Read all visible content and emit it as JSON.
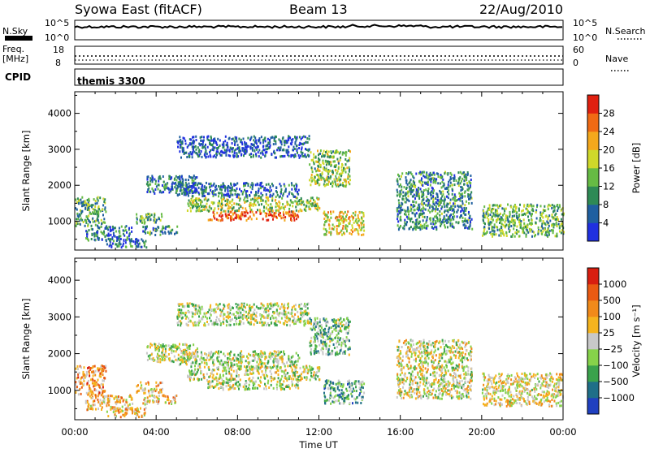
{
  "header": {
    "station": "Syowa East (fitACF)",
    "beam": "Beam 13",
    "date": "22/Aug/2010"
  },
  "strips": {
    "nsky_label": "N.Sky",
    "nsky_top": "10^5",
    "nsky_bottom": "10^0",
    "nsearch_label": "N.Search",
    "nsearch_top": "10^5",
    "nsearch_bottom": "10^0",
    "freq_label_1": "Freq.",
    "freq_label_2": "[MHz]",
    "freq_top": "18",
    "freq_bottom": "8",
    "nave_label": "Nave",
    "nave_top": "60",
    "nave_bottom": "0",
    "cpid_label": "CPID",
    "cpid_value": "themis 3300"
  },
  "chart_data": [
    {
      "type": "heatmap",
      "name": "power",
      "ylabel": "Slant Range [km]",
      "ylim": [
        200,
        4600
      ],
      "yticks": [
        1000,
        2000,
        3000,
        4000
      ],
      "xlim": [
        0,
        24
      ],
      "colorbar_label": "Power [dB]",
      "colorbar_ticks": [
        "28",
        "24",
        "20",
        "16",
        "12",
        "8",
        "4"
      ],
      "colorbar_colors": [
        "#2030e0",
        "#1f5fa0",
        "#2e8a55",
        "#66bb44",
        "#cfd82a",
        "#f4a81c",
        "#f06a14",
        "#e02010"
      ],
      "regions": [
        {
          "t0": 0.0,
          "t1": 1.5,
          "r0": 900,
          "r1": 1700,
          "level": 0.35
        },
        {
          "t0": 0.5,
          "t1": 2.8,
          "r0": 500,
          "r1": 900,
          "level": 0.25
        },
        {
          "t0": 1.5,
          "t1": 3.5,
          "r0": 300,
          "r1": 550,
          "level": 0.2
        },
        {
          "t0": 3.0,
          "t1": 4.3,
          "r0": 950,
          "r1": 1250,
          "level": 0.4
        },
        {
          "t0": 3.3,
          "t1": 5.0,
          "r0": 650,
          "r1": 900,
          "level": 0.3
        },
        {
          "t0": 3.5,
          "t1": 6.0,
          "r0": 1800,
          "r1": 2300,
          "level": 0.25
        },
        {
          "t0": 5.0,
          "t1": 11.5,
          "r0": 2800,
          "r1": 3400,
          "level": 0.15
        },
        {
          "t0": 5.5,
          "t1": 12.0,
          "r0": 1300,
          "r1": 1700,
          "level": 0.5
        },
        {
          "t0": 6.5,
          "t1": 11.0,
          "r0": 1050,
          "r1": 1300,
          "level": 0.85
        },
        {
          "t0": 5.0,
          "t1": 11.0,
          "r0": 1700,
          "r1": 2100,
          "level": 0.2
        },
        {
          "t0": 11.5,
          "t1": 13.5,
          "r0": 2000,
          "r1": 3000,
          "level": 0.45
        },
        {
          "t0": 12.2,
          "t1": 14.2,
          "r0": 650,
          "r1": 1300,
          "level": 0.6
        },
        {
          "t0": 20.0,
          "t1": 24.0,
          "r0": 600,
          "r1": 1500,
          "level": 0.4
        },
        {
          "t0": 15.8,
          "t1": 19.5,
          "r0": 800,
          "r1": 2400,
          "level": 0.3
        }
      ]
    },
    {
      "type": "heatmap",
      "name": "velocity",
      "ylabel": "Slant Range [km]",
      "ylim": [
        200,
        4600
      ],
      "yticks": [
        1000,
        2000,
        3000,
        4000
      ],
      "xlim": [
        0,
        24
      ],
      "xticks": [
        "00:00",
        "04:00",
        "08:00",
        "12:00",
        "16:00",
        "20:00",
        "00:00"
      ],
      "xlabel": "Time UT",
      "colorbar_label": "Velocity [m s⁻¹]",
      "colorbar_ticks": [
        "1000",
        "500",
        "100",
        "25",
        "−25",
        "−100",
        "−500",
        "−1000"
      ],
      "colorbar_colors": [
        "#2040c0",
        "#1f6f88",
        "#3aa24c",
        "#86d24a",
        "#c8c8c8",
        "#f5b41e",
        "#f18a1a",
        "#ea5a12",
        "#d81e10"
      ],
      "regions": [
        {
          "t0": 0.0,
          "t1": 1.5,
          "r0": 900,
          "r1": 1700,
          "level": 0.7
        },
        {
          "t0": 0.5,
          "t1": 2.8,
          "r0": 500,
          "r1": 900,
          "level": 0.6
        },
        {
          "t0": 1.5,
          "t1": 3.5,
          "r0": 300,
          "r1": 550,
          "level": 0.62
        },
        {
          "t0": 3.0,
          "t1": 4.3,
          "r0": 950,
          "r1": 1250,
          "level": 0.6
        },
        {
          "t0": 3.3,
          "t1": 5.0,
          "r0": 650,
          "r1": 900,
          "level": 0.62
        },
        {
          "t0": 3.5,
          "t1": 6.0,
          "r0": 1800,
          "r1": 2300,
          "level": 0.45
        },
        {
          "t0": 5.0,
          "t1": 11.5,
          "r0": 2800,
          "r1": 3400,
          "level": 0.45
        },
        {
          "t0": 5.5,
          "t1": 12.0,
          "r0": 1300,
          "r1": 1700,
          "level": 0.47
        },
        {
          "t0": 6.5,
          "t1": 11.0,
          "r0": 1050,
          "r1": 1300,
          "level": 0.45
        },
        {
          "t0": 5.0,
          "t1": 11.0,
          "r0": 1700,
          "r1": 2100,
          "level": 0.45
        },
        {
          "t0": 11.5,
          "t1": 13.5,
          "r0": 2000,
          "r1": 3000,
          "level": 0.35
        },
        {
          "t0": 12.2,
          "t1": 14.2,
          "r0": 650,
          "r1": 1300,
          "level": 0.3
        },
        {
          "t0": 20.0,
          "t1": 24.0,
          "r0": 600,
          "r1": 1500,
          "level": 0.55
        },
        {
          "t0": 15.8,
          "t1": 19.5,
          "r0": 800,
          "r1": 2400,
          "level": 0.5
        }
      ]
    }
  ]
}
